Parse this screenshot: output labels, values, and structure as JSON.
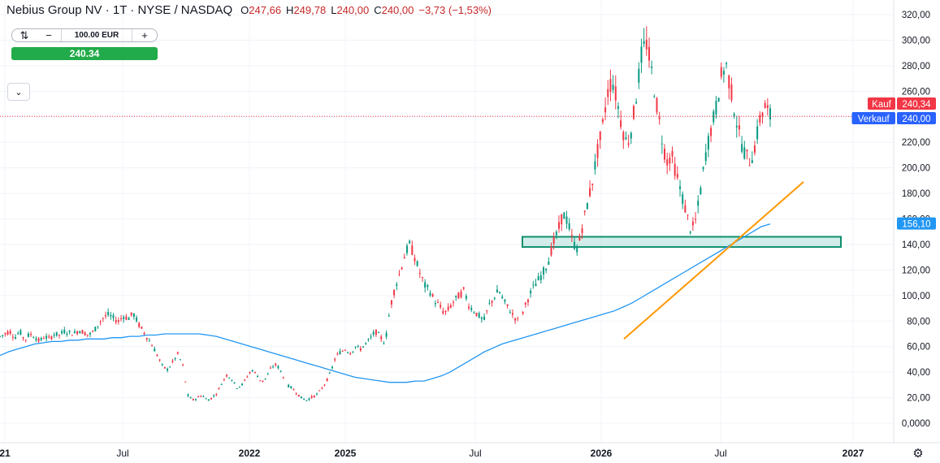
{
  "header": {
    "title": "Nebius Group NV · 1T · NYSE / NASDAQ",
    "open_label": "O",
    "open": "247,66",
    "high_label": "H",
    "high": "249,78",
    "low_label": "L",
    "low": "240,00",
    "close_label": "C",
    "close": "240,00",
    "change": "−3,73 (−1,53%)"
  },
  "trade_panel": {
    "amount": "100.00 EUR",
    "minus": "−",
    "plus": "+",
    "price_button": "240.34"
  },
  "chart_data": {
    "type": "candlestick",
    "y_axis": {
      "ticks": [
        "320,00",
        "300,00",
        "280,00",
        "260,00",
        "240,00",
        "220,00",
        "200,00",
        "180,00",
        "160,00",
        "140,00",
        "120,00",
        "100,00",
        "80,00",
        "60,00",
        "40,00",
        "20,00",
        "0,0000"
      ],
      "range": [
        0,
        325
      ]
    },
    "x_axis": {
      "ticks": [
        {
          "label": "21",
          "bold": true
        },
        {
          "label": "Jul",
          "bold": false
        },
        {
          "label": "2022",
          "bold": true
        },
        {
          "label": "2025",
          "bold": true
        },
        {
          "label": "Jul",
          "bold": false
        },
        {
          "label": "2026",
          "bold": true
        },
        {
          "label": "Jul",
          "bold": false
        },
        {
          "label": "2027",
          "bold": true
        }
      ]
    },
    "price_labels": {
      "buy_label": "Kauf",
      "buy_value": "240,34",
      "sell_label": "Verkauf",
      "sell_value": "240,00",
      "ma_value": "156,10"
    },
    "colors": {
      "up": "#089981",
      "down": "#f23645",
      "ma": "#2196f3",
      "trendline": "#ff9800",
      "zone": "#22ab94"
    },
    "zone": {
      "low": 138,
      "high": 146
    },
    "trendline": {
      "start_price": 66,
      "end_price": 189
    },
    "price_path": [
      68,
      70,
      72,
      67,
      72,
      65,
      70,
      68,
      64,
      68,
      66,
      70,
      69,
      72,
      71,
      70,
      73,
      71,
      69,
      72,
      78,
      83,
      85,
      82,
      80,
      84,
      82,
      86,
      78,
      72,
      66,
      60,
      52,
      44,
      42,
      48,
      54,
      46,
      22,
      18,
      20,
      22,
      18,
      20,
      24,
      32,
      38,
      34,
      28,
      30,
      36,
      42,
      38,
      32,
      36,
      44,
      46,
      40,
      30,
      28,
      24,
      20,
      18,
      20,
      22,
      26,
      32,
      40,
      52,
      56,
      58,
      55,
      60,
      58,
      62,
      66,
      72,
      68,
      62,
      90,
      106,
      118,
      132,
      140,
      130,
      118,
      108,
      104,
      96,
      92,
      86,
      90,
      96,
      100,
      104,
      92,
      88,
      84,
      80,
      92,
      98,
      104,
      96,
      90,
      84,
      80,
      88,
      98,
      106,
      112,
      118,
      126,
      140,
      150,
      164,
      158,
      142,
      136,
      155,
      172,
      190,
      212,
      230,
      258,
      270,
      252,
      232,
      218,
      232,
      260,
      290,
      298,
      275,
      250,
      225,
      205,
      210,
      195,
      180,
      165,
      150,
      160,
      185,
      212,
      230,
      246,
      270,
      282,
      262,
      240,
      222,
      210,
      205,
      218,
      240,
      248,
      240
    ],
    "ma_path": [
      53,
      56,
      58,
      60,
      62,
      63,
      64,
      64,
      65,
      65,
      66,
      66,
      66,
      67,
      67,
      68,
      68,
      69,
      69,
      70,
      70,
      70,
      70,
      70,
      69,
      68,
      66,
      64,
      62,
      60,
      58,
      56,
      54,
      52,
      50,
      48,
      46,
      44,
      42,
      40,
      38,
      36,
      35,
      34,
      33,
      32,
      32,
      32,
      33,
      33,
      35,
      37,
      40,
      44,
      48,
      52,
      56,
      59,
      62,
      64,
      66,
      68,
      70,
      72,
      74,
      76,
      78,
      80,
      82,
      84,
      86,
      88,
      91,
      94,
      98,
      102,
      106,
      110,
      114,
      118,
      122,
      126,
      130,
      134,
      138,
      142,
      146,
      150,
      154,
      156
    ]
  }
}
